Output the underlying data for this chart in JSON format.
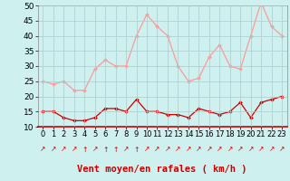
{
  "hours": [
    0,
    1,
    2,
    3,
    4,
    5,
    6,
    7,
    8,
    9,
    10,
    11,
    12,
    13,
    14,
    15,
    16,
    17,
    18,
    19,
    20,
    21,
    22,
    23
  ],
  "wind_avg": [
    15,
    15,
    13,
    12,
    12,
    13,
    16,
    16,
    15,
    19,
    15,
    15,
    14,
    14,
    13,
    16,
    15,
    14,
    15,
    18,
    13,
    18,
    19,
    20
  ],
  "wind_gust": [
    25,
    24,
    25,
    22,
    22,
    29,
    32,
    30,
    30,
    40,
    47,
    43,
    40,
    30,
    25,
    26,
    33,
    37,
    30,
    29,
    40,
    51,
    43,
    40
  ],
  "line_avg_color": "#cc0000",
  "line_gust_color": "#ff9999",
  "bg_color": "#cef0ee",
  "grid_color": "#aacccc",
  "xlabel": "Vent moyen/en rafales ( km/h )",
  "xlabel_color": "#cc0000",
  "ylim": [
    10,
    50
  ],
  "yticks": [
    10,
    15,
    20,
    25,
    30,
    35,
    40,
    45,
    50
  ],
  "tick_fontsize": 6.5,
  "label_fontsize": 7.5,
  "arrows": [
    "↗",
    "↗",
    "↗",
    "↗",
    "↑",
    "↗",
    "↑",
    "↑",
    "↗",
    "↑",
    "↗",
    "↗",
    "↗",
    "↗",
    "↗",
    "↗",
    "↗",
    "↗",
    "↗",
    "↗",
    "↗",
    "↗",
    "↗",
    "↗"
  ]
}
